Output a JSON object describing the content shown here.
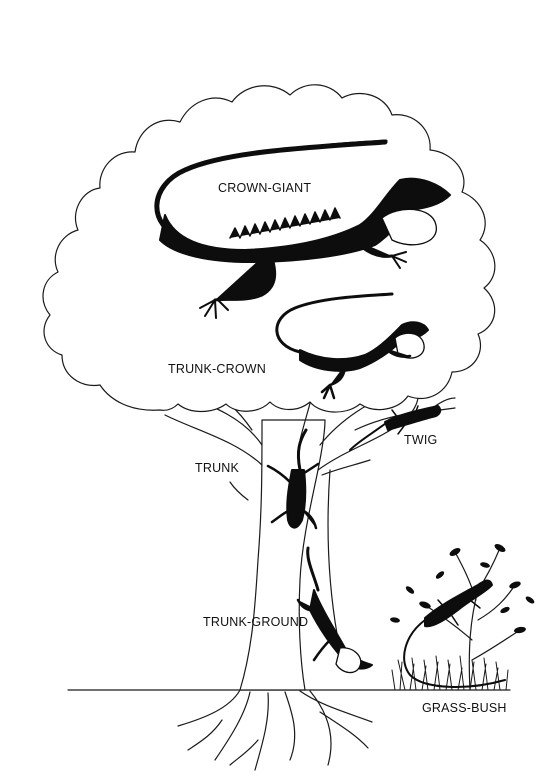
{
  "diagram": {
    "labels": {
      "crown_giant": "CROWN-GIANT",
      "trunk_crown": "TRUNK-CROWN",
      "trunk": "TRUNK",
      "twig": "TWIG",
      "trunk_ground": "TRUNK-GROUND",
      "grass_bush": "GRASS-BUSH"
    },
    "colors": {
      "ink": "#0d0d0d",
      "background": "#ffffff"
    }
  }
}
